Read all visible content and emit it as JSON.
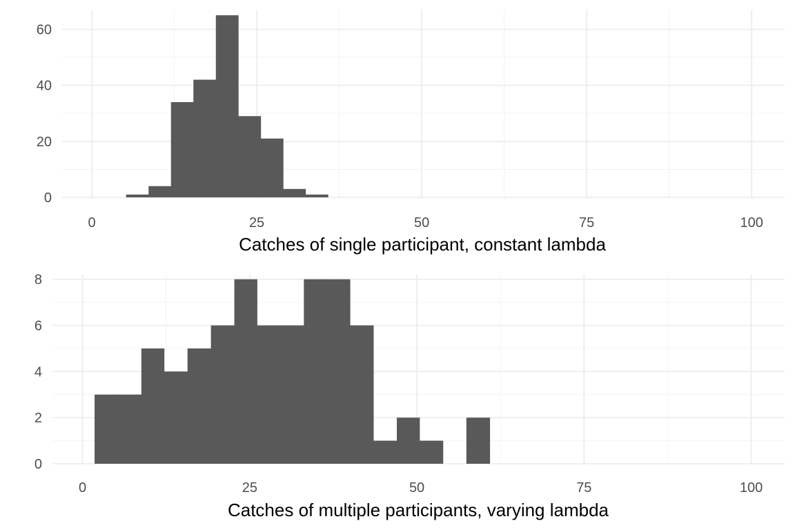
{
  "chart_data": [
    {
      "type": "histogram",
      "xlabel": "Catches of single participant, constant lambda",
      "ylabel": "",
      "xlim": [
        -4.5,
        105
      ],
      "ylim": [
        -0.5,
        67
      ],
      "xticks": [
        0,
        25,
        50,
        75,
        100
      ],
      "yticks": [
        0,
        20,
        40,
        60
      ],
      "grid": true,
      "bars": [
        {
          "x0": 5.2,
          "x1": 8.6,
          "count": 1
        },
        {
          "x0": 8.6,
          "x1": 12.0,
          "count": 4
        },
        {
          "x0": 12.0,
          "x1": 15.4,
          "count": 34
        },
        {
          "x0": 15.4,
          "x1": 18.8,
          "count": 42
        },
        {
          "x0": 18.8,
          "x1": 22.2,
          "count": 65
        },
        {
          "x0": 22.2,
          "x1": 25.6,
          "count": 29
        },
        {
          "x0": 25.6,
          "x1": 29.0,
          "count": 21
        },
        {
          "x0": 29.0,
          "x1": 32.4,
          "count": 3
        },
        {
          "x0": 32.4,
          "x1": 35.8,
          "count": 1
        }
      ]
    },
    {
      "type": "histogram",
      "xlabel": "Catches of multiple participants, varying lambda",
      "ylabel": "",
      "xlim": [
        -4.5,
        105
      ],
      "ylim": [
        0,
        8.2
      ],
      "xticks": [
        0,
        25,
        50,
        75,
        100
      ],
      "yticks": [
        0,
        2,
        4,
        6,
        8
      ],
      "grid": true,
      "bars": [
        {
          "x0": 1.8,
          "x1": 5.3,
          "count": 3
        },
        {
          "x0": 5.3,
          "x1": 8.8,
          "count": 3
        },
        {
          "x0": 8.8,
          "x1": 12.2,
          "count": 5
        },
        {
          "x0": 12.2,
          "x1": 15.7,
          "count": 4
        },
        {
          "x0": 15.7,
          "x1": 19.2,
          "count": 5
        },
        {
          "x0": 19.2,
          "x1": 22.7,
          "count": 6
        },
        {
          "x0": 22.7,
          "x1": 26.1,
          "count": 8
        },
        {
          "x0": 26.1,
          "x1": 29.6,
          "count": 6
        },
        {
          "x0": 29.6,
          "x1": 33.1,
          "count": 6
        },
        {
          "x0": 33.1,
          "x1": 36.6,
          "count": 8
        },
        {
          "x0": 36.6,
          "x1": 40.0,
          "count": 8
        },
        {
          "x0": 40.0,
          "x1": 43.5,
          "count": 6
        },
        {
          "x0": 43.5,
          "x1": 47.0,
          "count": 1
        },
        {
          "x0": 47.0,
          "x1": 50.4,
          "count": 2
        },
        {
          "x0": 50.4,
          "x1": 53.9,
          "count": 1
        },
        {
          "x0": 53.9,
          "x1": 57.4,
          "count": 0
        },
        {
          "x0": 57.4,
          "x1": 60.9,
          "count": 2
        }
      ]
    }
  ]
}
